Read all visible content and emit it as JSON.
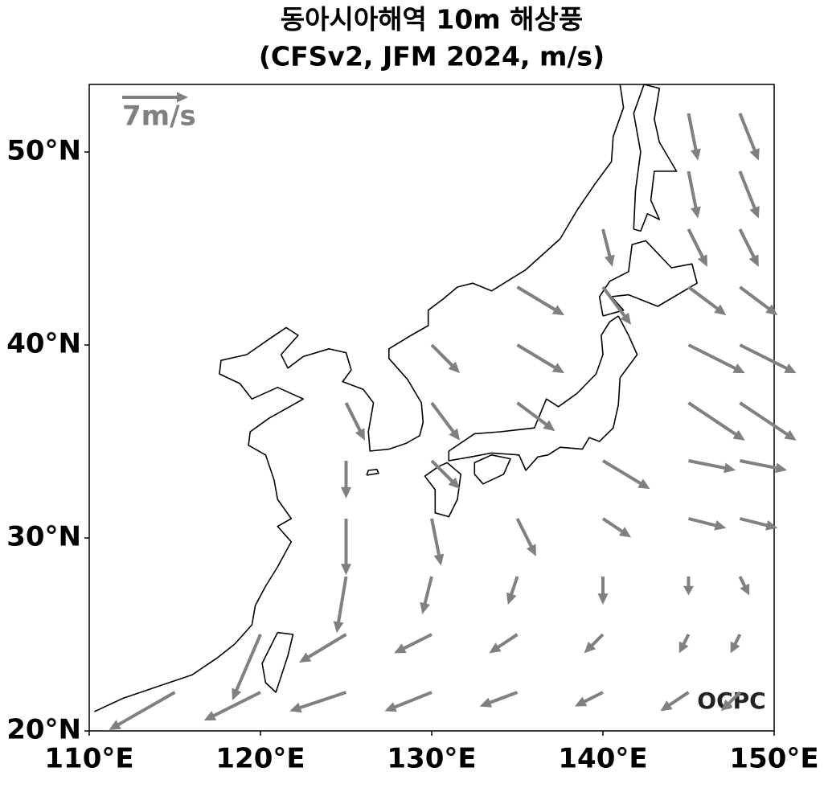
{
  "chart_data": {
    "type": "quiver",
    "title": "동아시아해역 10m 해상풍",
    "subtitle": "(CFSv2, JFM 2024, m/s)",
    "xlim": [
      110,
      150
    ],
    "ylim": [
      20,
      53.5
    ],
    "xticks": [
      {
        "value": 110,
        "label": "110°E"
      },
      {
        "value": 120,
        "label": "120°E"
      },
      {
        "value": 130,
        "label": "130°E"
      },
      {
        "value": 140,
        "label": "140°E"
      },
      {
        "value": 150,
        "label": "150°E"
      }
    ],
    "yticks": [
      {
        "value": 20,
        "label": "20°N"
      },
      {
        "value": 30,
        "label": "30°N"
      },
      {
        "value": 40,
        "label": "40°N"
      },
      {
        "value": 50,
        "label": "50°N"
      }
    ],
    "color": "#808080",
    "reference": {
      "value": 7,
      "label": "7m/s"
    },
    "vectors": {
      "lon": [
        115,
        120,
        125,
        130,
        135,
        140,
        145,
        148
      ],
      "lat": [
        22,
        25,
        28,
        31,
        34,
        37,
        40,
        43,
        46,
        49,
        52
      ],
      "u": [
        [
          -7,
          -6,
          -6,
          -5,
          -4,
          -3,
          -3,
          -2
        ],
        [
          null,
          -3,
          -5,
          -4,
          -3,
          -2,
          -1,
          -1
        ],
        [
          null,
          null,
          -1,
          -1,
          -1,
          0,
          0,
          1
        ],
        [
          null,
          null,
          0,
          1,
          2,
          3,
          4,
          4
        ],
        [
          null,
          null,
          0,
          3,
          null,
          5,
          5,
          5
        ],
        [
          null,
          null,
          2,
          3,
          4,
          null,
          6,
          6
        ],
        [
          null,
          null,
          null,
          3,
          5,
          null,
          6,
          6
        ],
        [
          null,
          null,
          null,
          null,
          5,
          3,
          4,
          4
        ],
        [
          null,
          null,
          null,
          null,
          null,
          1,
          2,
          2
        ],
        [
          null,
          null,
          null,
          null,
          null,
          null,
          1,
          2
        ],
        [
          null,
          null,
          null,
          null,
          null,
          null,
          1,
          2
        ]
      ],
      "v": [
        [
          -4,
          -3,
          -2,
          -2,
          -1.5,
          -1.5,
          -2,
          -2
        ],
        [
          null,
          -7,
          -3,
          -2,
          -2,
          -2,
          -2,
          -2
        ],
        [
          null,
          null,
          -6,
          -4,
          -3,
          -3,
          -2,
          -2
        ],
        [
          null,
          null,
          -6,
          -5,
          -4,
          -2,
          -1,
          -1
        ],
        [
          null,
          null,
          -4,
          -3,
          null,
          -3,
          -1,
          -1
        ],
        [
          null,
          null,
          -4,
          -4,
          -3,
          null,
          -4,
          -4
        ],
        [
          null,
          null,
          null,
          -3,
          -3,
          null,
          -3,
          -3
        ],
        [
          null,
          null,
          null,
          null,
          -3,
          -4,
          -3,
          -3
        ],
        [
          null,
          null,
          null,
          null,
          null,
          -4,
          -4,
          -4
        ],
        [
          null,
          null,
          null,
          null,
          null,
          null,
          -5,
          -5
        ],
        [
          null,
          null,
          null,
          null,
          null,
          null,
          -5,
          -5
        ]
      ]
    }
  },
  "logo": "OCPC"
}
